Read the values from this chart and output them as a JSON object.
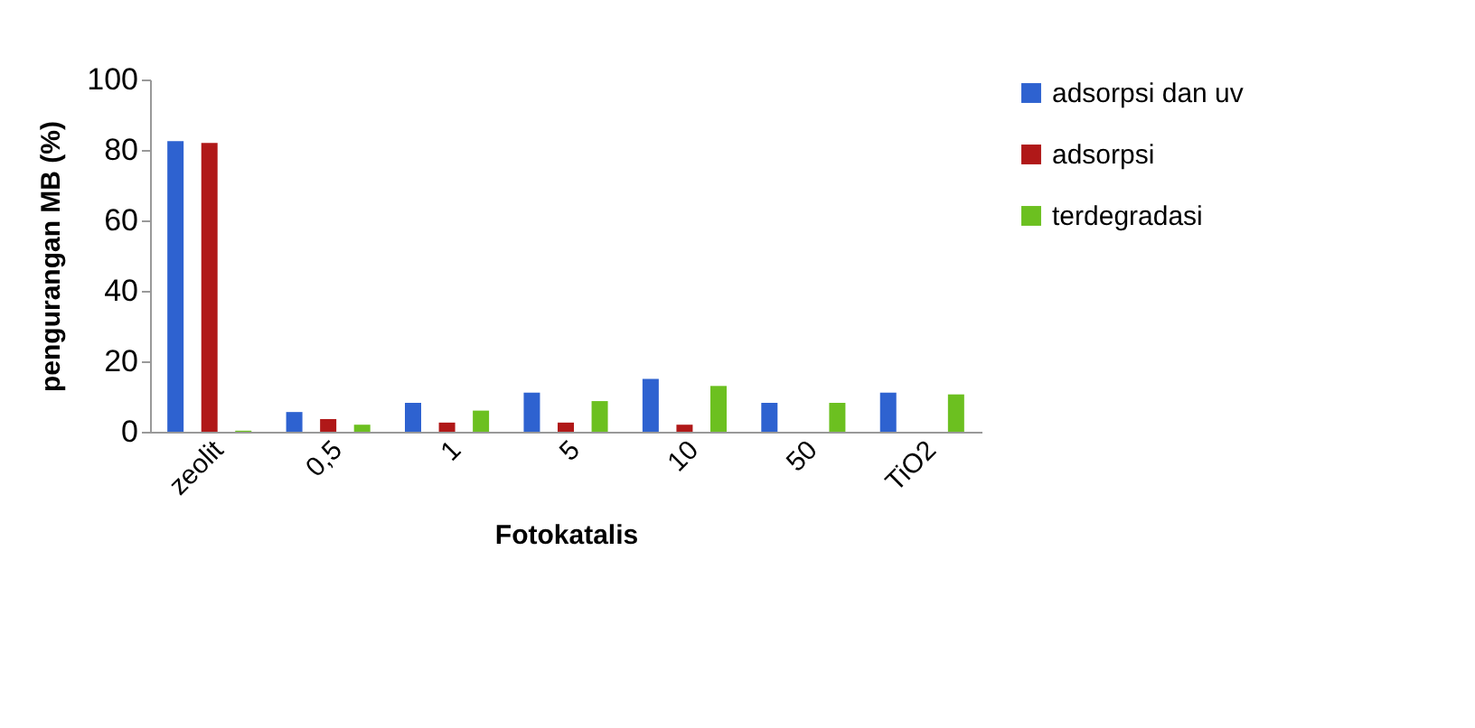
{
  "chart_data": {
    "type": "bar",
    "xlabel": "Fotokatalis",
    "ylabel": "pengurangan MB (%)",
    "categories": [
      "zeolit",
      "0,5",
      "1",
      "5",
      "10",
      "50",
      "TiO2"
    ],
    "series": [
      {
        "name": "adsorpsi dan uv",
        "color": "#2e62d0",
        "values": [
          82.5,
          5.6,
          8.2,
          11.1,
          15,
          8.2,
          11.1
        ]
      },
      {
        "name": "adsorpsi",
        "color": "#b01818",
        "values": [
          82,
          3.6,
          2.6,
          2.6,
          2,
          0,
          0
        ]
      },
      {
        "name": "terdegradasi",
        "color": "#6cc020",
        "values": [
          0.3,
          2,
          6,
          8.7,
          13,
          8.2,
          10.6
        ]
      }
    ],
    "ylim": [
      0,
      100
    ],
    "yticks": [
      0,
      20,
      40,
      60,
      80,
      100
    ],
    "grid": false,
    "legend": "right"
  }
}
